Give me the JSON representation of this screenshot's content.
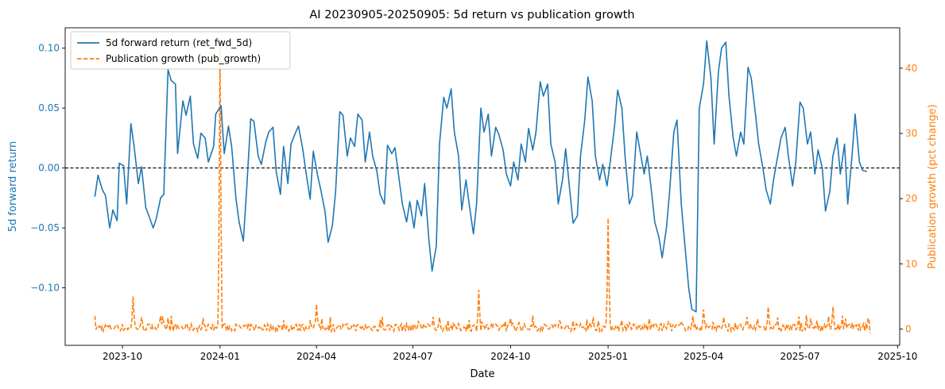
{
  "chart_data": {
    "type": "line",
    "title": "AI 20230905-20250905: 5d return vs publication growth",
    "xlabel": "Date",
    "ylabel_left": "5d forward return",
    "ylabel_right": "Publication growth (pct change)",
    "x_ticks": [
      "2023-10",
      "2024-01",
      "2024-04",
      "2024-07",
      "2024-10",
      "2025-01",
      "2025-04",
      "2025-07",
      "2025-10"
    ],
    "y_left_ticks": [
      "−0.10",
      "−0.05",
      "0.00",
      "0.05",
      "0.10"
    ],
    "y_right_ticks": [
      "0",
      "10",
      "20",
      "30",
      "40"
    ],
    "ylim_left": [
      -0.148,
      0.117
    ],
    "ylim_right": [
      -2.5,
      46.2
    ],
    "xlim": [
      "2023-08-08",
      "2025-10-03"
    ],
    "legend_position": "top-left",
    "colors": {
      "ret": "#1f77b4",
      "pub": "#ff7f0e",
      "zero_line": "#000000"
    },
    "series": [
      {
        "name": "5d forward return (ret_fwd_5d)",
        "axis": "left",
        "style": "solid",
        "points": [
          [
            "2023-09-05",
            -0.024
          ],
          [
            "2023-09-08",
            -0.006
          ],
          [
            "2023-09-12",
            -0.018
          ],
          [
            "2023-09-15",
            -0.023
          ],
          [
            "2023-09-19",
            -0.05
          ],
          [
            "2023-09-22",
            -0.035
          ],
          [
            "2023-09-26",
            -0.044
          ],
          [
            "2023-09-28",
            0.004
          ],
          [
            "2023-10-02",
            0.002
          ],
          [
            "2023-10-05",
            -0.03
          ],
          [
            "2023-10-09",
            0.037
          ],
          [
            "2023-10-12",
            0.018
          ],
          [
            "2023-10-16",
            -0.013
          ],
          [
            "2023-10-19",
            0.001
          ],
          [
            "2023-10-23",
            -0.033
          ],
          [
            "2023-10-26",
            -0.04
          ],
          [
            "2023-10-30",
            -0.05
          ],
          [
            "2023-11-02",
            -0.042
          ],
          [
            "2023-11-06",
            -0.025
          ],
          [
            "2023-11-09",
            -0.022
          ],
          [
            "2023-11-13",
            0.082
          ],
          [
            "2023-11-16",
            0.073
          ],
          [
            "2023-11-20",
            0.07
          ],
          [
            "2023-11-22",
            0.012
          ],
          [
            "2023-11-27",
            0.056
          ],
          [
            "2023-11-30",
            0.044
          ],
          [
            "2023-12-04",
            0.06
          ],
          [
            "2023-12-07",
            0.02
          ],
          [
            "2023-12-11",
            0.008
          ],
          [
            "2023-12-14",
            0.029
          ],
          [
            "2023-12-18",
            0.025
          ],
          [
            "2023-12-21",
            0.005
          ],
          [
            "2023-12-26",
            0.018
          ],
          [
            "2023-12-28",
            0.045
          ],
          [
            "2024-01-02",
            0.052
          ],
          [
            "2024-01-05",
            0.012
          ],
          [
            "2024-01-09",
            0.035
          ],
          [
            "2024-01-12",
            0.018
          ],
          [
            "2024-01-16",
            -0.025
          ],
          [
            "2024-01-19",
            -0.045
          ],
          [
            "2024-01-23",
            -0.061
          ],
          [
            "2024-01-26",
            -0.02
          ],
          [
            "2024-01-30",
            0.041
          ],
          [
            "2024-02-02",
            0.039
          ],
          [
            "2024-02-06",
            0.01
          ],
          [
            "2024-02-09",
            0.003
          ],
          [
            "2024-02-13",
            0.021
          ],
          [
            "2024-02-16",
            0.03
          ],
          [
            "2024-02-20",
            0.034
          ],
          [
            "2024-02-23",
            -0.003
          ],
          [
            "2024-02-27",
            -0.022
          ],
          [
            "2024-03-01",
            0.018
          ],
          [
            "2024-03-05",
            -0.013
          ],
          [
            "2024-03-08",
            0.02
          ],
          [
            "2024-03-12",
            0.029
          ],
          [
            "2024-03-15",
            0.035
          ],
          [
            "2024-03-19",
            0.016
          ],
          [
            "2024-03-22",
            -0.003
          ],
          [
            "2024-03-26",
            -0.026
          ],
          [
            "2024-03-29",
            0.014
          ],
          [
            "2024-04-02",
            -0.006
          ],
          [
            "2024-04-05",
            -0.018
          ],
          [
            "2024-04-09",
            -0.036
          ],
          [
            "2024-04-12",
            -0.062
          ],
          [
            "2024-04-16",
            -0.048
          ],
          [
            "2024-04-19",
            -0.02
          ],
          [
            "2024-04-23",
            0.047
          ],
          [
            "2024-04-26",
            0.044
          ],
          [
            "2024-04-30",
            0.01
          ],
          [
            "2024-05-03",
            0.025
          ],
          [
            "2024-05-07",
            0.018
          ],
          [
            "2024-05-10",
            0.045
          ],
          [
            "2024-05-14",
            0.04
          ],
          [
            "2024-05-17",
            0.005
          ],
          [
            "2024-05-21",
            0.03
          ],
          [
            "2024-05-24",
            0.01
          ],
          [
            "2024-05-28",
            -0.003
          ],
          [
            "2024-05-31",
            -0.022
          ],
          [
            "2024-06-04",
            -0.03
          ],
          [
            "2024-06-07",
            0.019
          ],
          [
            "2024-06-11",
            0.012
          ],
          [
            "2024-06-14",
            0.017
          ],
          [
            "2024-06-18",
            -0.01
          ],
          [
            "2024-06-21",
            -0.03
          ],
          [
            "2024-06-25",
            -0.045
          ],
          [
            "2024-06-28",
            -0.028
          ],
          [
            "2024-07-02",
            -0.05
          ],
          [
            "2024-07-05",
            -0.027
          ],
          [
            "2024-07-09",
            -0.04
          ],
          [
            "2024-07-12",
            -0.013
          ],
          [
            "2024-07-16",
            -0.06
          ],
          [
            "2024-07-19",
            -0.086
          ],
          [
            "2024-07-23",
            -0.065
          ],
          [
            "2024-07-26",
            0.02
          ],
          [
            "2024-07-30",
            0.059
          ],
          [
            "2024-08-02",
            0.05
          ],
          [
            "2024-08-06",
            0.066
          ],
          [
            "2024-08-09",
            0.03
          ],
          [
            "2024-08-13",
            0.01
          ],
          [
            "2024-08-16",
            -0.035
          ],
          [
            "2024-08-20",
            -0.01
          ],
          [
            "2024-08-23",
            -0.03
          ],
          [
            "2024-08-27",
            -0.055
          ],
          [
            "2024-08-30",
            -0.03
          ],
          [
            "2024-09-03",
            0.05
          ],
          [
            "2024-09-06",
            0.03
          ],
          [
            "2024-09-10",
            0.045
          ],
          [
            "2024-09-13",
            0.01
          ],
          [
            "2024-09-17",
            0.034
          ],
          [
            "2024-09-20",
            0.028
          ],
          [
            "2024-09-24",
            0.015
          ],
          [
            "2024-09-27",
            -0.005
          ],
          [
            "2024-10-01",
            -0.015
          ],
          [
            "2024-10-04",
            0.005
          ],
          [
            "2024-10-08",
            -0.01
          ],
          [
            "2024-10-11",
            0.02
          ],
          [
            "2024-10-15",
            0.005
          ],
          [
            "2024-10-18",
            0.033
          ],
          [
            "2024-10-22",
            0.015
          ],
          [
            "2024-10-25",
            0.03
          ],
          [
            "2024-10-29",
            0.072
          ],
          [
            "2024-11-01",
            0.06
          ],
          [
            "2024-11-05",
            0.07
          ],
          [
            "2024-11-08",
            0.02
          ],
          [
            "2024-11-12",
            0.005
          ],
          [
            "2024-11-15",
            -0.03
          ],
          [
            "2024-11-19",
            -0.01
          ],
          [
            "2024-11-22",
            0.016
          ],
          [
            "2024-11-26",
            -0.02
          ],
          [
            "2024-11-29",
            -0.046
          ],
          [
            "2024-12-03",
            -0.04
          ],
          [
            "2024-12-06",
            0.01
          ],
          [
            "2024-12-10",
            0.04
          ],
          [
            "2024-12-13",
            0.076
          ],
          [
            "2024-12-17",
            0.056
          ],
          [
            "2024-12-20",
            0.01
          ],
          [
            "2024-12-24",
            -0.01
          ],
          [
            "2024-12-27",
            0.003
          ],
          [
            "2024-12-31",
            -0.015
          ],
          [
            "2025-01-03",
            0.005
          ],
          [
            "2025-01-07",
            0.034
          ],
          [
            "2025-01-10",
            0.065
          ],
          [
            "2025-01-14",
            0.05
          ],
          [
            "2025-01-17",
            0.01
          ],
          [
            "2025-01-21",
            -0.03
          ],
          [
            "2025-01-24",
            -0.023
          ],
          [
            "2025-01-28",
            0.03
          ],
          [
            "2025-01-31",
            0.015
          ],
          [
            "2025-02-04",
            -0.005
          ],
          [
            "2025-02-07",
            0.01
          ],
          [
            "2025-02-11",
            -0.02
          ],
          [
            "2025-02-14",
            -0.045
          ],
          [
            "2025-02-18",
            -0.058
          ],
          [
            "2025-02-21",
            -0.075
          ],
          [
            "2025-02-25",
            -0.05
          ],
          [
            "2025-02-28",
            -0.02
          ],
          [
            "2025-03-04",
            0.03
          ],
          [
            "2025-03-07",
            0.04
          ],
          [
            "2025-03-11",
            -0.03
          ],
          [
            "2025-03-14",
            -0.06
          ],
          [
            "2025-03-18",
            -0.1
          ],
          [
            "2025-03-21",
            -0.118
          ],
          [
            "2025-03-25",
            -0.12
          ],
          [
            "2025-03-28",
            0.05
          ],
          [
            "2025-04-01",
            0.07
          ],
          [
            "2025-04-04",
            0.106
          ],
          [
            "2025-04-08",
            0.075
          ],
          [
            "2025-04-11",
            0.02
          ],
          [
            "2025-04-15",
            0.08
          ],
          [
            "2025-04-18",
            0.1
          ],
          [
            "2025-04-22",
            0.105
          ],
          [
            "2025-04-25",
            0.06
          ],
          [
            "2025-04-29",
            0.025
          ],
          [
            "2025-05-02",
            0.01
          ],
          [
            "2025-05-06",
            0.03
          ],
          [
            "2025-05-09",
            0.02
          ],
          [
            "2025-05-13",
            0.084
          ],
          [
            "2025-05-16",
            0.075
          ],
          [
            "2025-05-20",
            0.045
          ],
          [
            "2025-05-23",
            0.02
          ],
          [
            "2025-05-27",
            0.0
          ],
          [
            "2025-05-30",
            -0.018
          ],
          [
            "2025-06-03",
            -0.03
          ],
          [
            "2025-06-06",
            -0.01
          ],
          [
            "2025-06-10",
            0.01
          ],
          [
            "2025-06-13",
            0.025
          ],
          [
            "2025-06-17",
            0.034
          ],
          [
            "2025-06-20",
            0.01
          ],
          [
            "2025-06-24",
            -0.015
          ],
          [
            "2025-06-27",
            0.005
          ],
          [
            "2025-07-01",
            0.055
          ],
          [
            "2025-07-04",
            0.05
          ],
          [
            "2025-07-08",
            0.02
          ],
          [
            "2025-07-11",
            0.03
          ],
          [
            "2025-07-15",
            -0.005
          ],
          [
            "2025-07-18",
            0.015
          ],
          [
            "2025-07-22",
            0.0
          ],
          [
            "2025-07-25",
            -0.036
          ],
          [
            "2025-07-29",
            -0.02
          ],
          [
            "2025-08-01",
            0.01
          ],
          [
            "2025-08-05",
            0.025
          ],
          [
            "2025-08-08",
            -0.005
          ],
          [
            "2025-08-12",
            0.02
          ],
          [
            "2025-08-15",
            -0.03
          ],
          [
            "2025-08-19",
            0.01
          ],
          [
            "2025-08-22",
            0.045
          ],
          [
            "2025-08-26",
            0.005
          ],
          [
            "2025-08-29",
            -0.002
          ],
          [
            "2025-09-02",
            -0.003
          ]
        ]
      },
      {
        "name": "Publication growth (pub_growth)",
        "axis": "right",
        "style": "dashed",
        "baseline_noise": 0.6,
        "spikes": [
          {
            "date": "2023-10-11",
            "value": 5.0
          },
          {
            "date": "2024-01-01",
            "value": 44.5
          },
          {
            "date": "2024-04-01",
            "value": 3.8
          },
          {
            "date": "2024-09-01",
            "value": 6.0
          },
          {
            "date": "2025-01-01",
            "value": 17.0
          },
          {
            "date": "2025-04-01",
            "value": 3.0
          },
          {
            "date": "2025-06-01",
            "value": 3.4
          },
          {
            "date": "2025-08-01",
            "value": 3.4
          }
        ],
        "end_value": 1.6
      }
    ]
  }
}
